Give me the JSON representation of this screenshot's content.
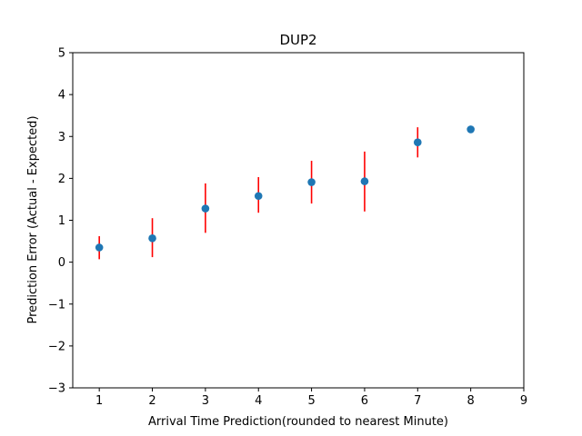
{
  "chart_data": {
    "type": "scatter",
    "title": "DUP2",
    "xlabel": "Arrival Time Prediction(rounded to nearest Minute)",
    "ylabel": "Prediction Error (Actual - Expected)",
    "xlim": [
      0.5,
      9
    ],
    "ylim": [
      -3,
      5
    ],
    "xticks": [
      1,
      2,
      3,
      4,
      5,
      6,
      7,
      8,
      9
    ],
    "yticks": [
      -3,
      -2,
      -1,
      0,
      1,
      2,
      3,
      4,
      5
    ],
    "grid": false,
    "legend": "none",
    "series": [
      {
        "points": [
          {
            "x": 1,
            "y": 0.35,
            "err_low": 0.07,
            "err_high": 0.62
          },
          {
            "x": 2,
            "y": 0.57,
            "err_low": 0.12,
            "err_high": 1.05
          },
          {
            "x": 3,
            "y": 1.28,
            "err_low": 0.7,
            "err_high": 1.88
          },
          {
            "x": 4,
            "y": 1.58,
            "err_low": 1.18,
            "err_high": 2.03
          },
          {
            "x": 5,
            "y": 1.91,
            "err_low": 1.4,
            "err_high": 2.42
          },
          {
            "x": 6,
            "y": 1.93,
            "err_low": 1.21,
            "err_high": 2.64
          },
          {
            "x": 7,
            "y": 2.86,
            "err_low": 2.5,
            "err_high": 3.22
          },
          {
            "x": 8,
            "y": 3.17,
            "err_low": 3.17,
            "err_high": 3.17
          }
        ]
      }
    ],
    "colors": {
      "marker": "#1f77b4",
      "errorbar": "#ff0000",
      "axes": "#000000"
    }
  }
}
